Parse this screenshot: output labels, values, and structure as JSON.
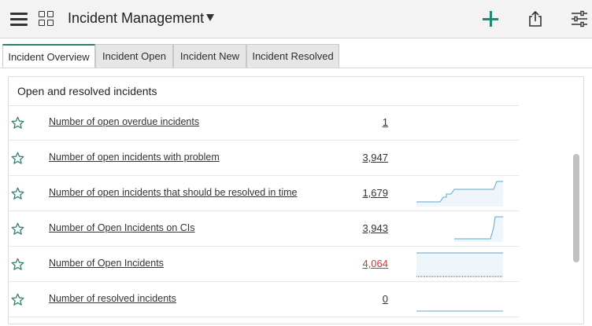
{
  "header": {
    "title": "Incident Management",
    "icons": [
      "hamburger-menu-icon",
      "grid-icon",
      "chevron-down-icon",
      "plus-icon",
      "share-icon",
      "sliders-icon"
    ],
    "accent_color": "#1d8a73"
  },
  "tabs": [
    {
      "label": "Incident Overview",
      "active": true
    },
    {
      "label": "Incident Open",
      "active": false
    },
    {
      "label": "Incident New",
      "active": false
    },
    {
      "label": "Incident Resolved",
      "active": false
    }
  ],
  "card": {
    "title": "Open and resolved incidents",
    "rows": [
      {
        "label": "Number of open overdue incidents",
        "value": "1",
        "trend": "none"
      },
      {
        "label": "Number of open incidents with problem",
        "value": "3,947",
        "trend": "none"
      },
      {
        "label": "Number of open incidents that should be resolved in time",
        "value": "1,679",
        "trend": "rising-steps"
      },
      {
        "label": "Number of Open Incidents on CIs",
        "value": "3,943",
        "trend": "rising-late"
      },
      {
        "label": "Number of Open Incidents",
        "value": "4,064",
        "trend": "flat-filled",
        "value_color": "#c83b3b"
      },
      {
        "label": "Number of resolved incidents",
        "value": "0",
        "trend": "flat-baseline"
      }
    ]
  },
  "colors": {
    "tab_active_border": "#2f7d6c",
    "spark_line": "#5aa7cc",
    "spark_fill": "#eef6fb",
    "alert_value": "#c83b3b"
  }
}
